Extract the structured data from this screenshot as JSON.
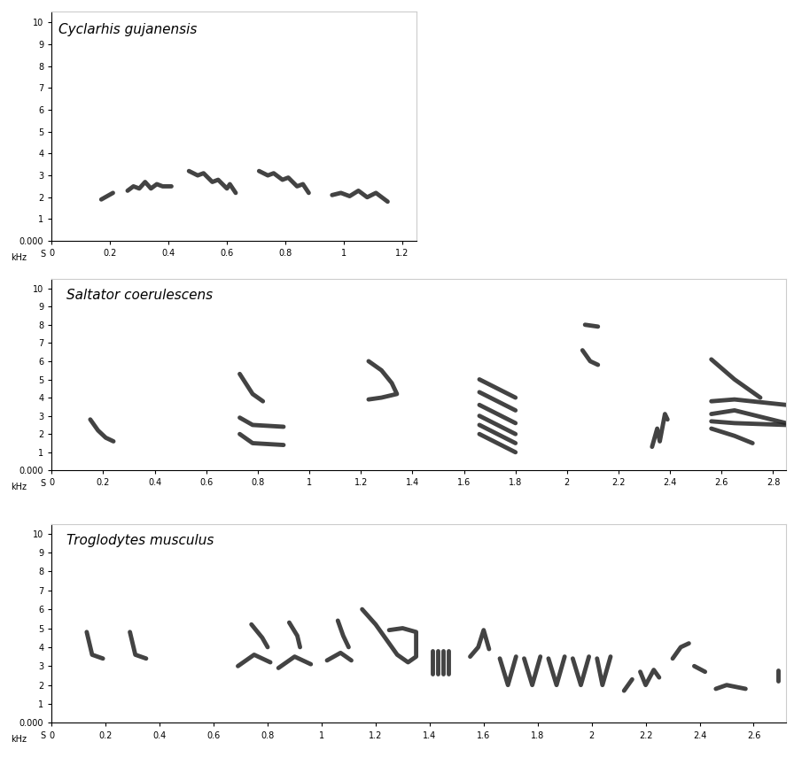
{
  "chart_data": [
    {
      "type": "spectrogram",
      "title": "Cyclarhis gujanensis",
      "xlabel": "S",
      "ylabel": "kHz",
      "color": "#222222",
      "xlim": [
        0,
        1.25
      ],
      "ylim": [
        0,
        10.5
      ],
      "xticks": [
        0,
        0.2,
        0.4,
        0.6,
        0.8,
        1,
        1.2
      ],
      "yticks": [
        {
          "value": 0,
          "label": "0.000"
        },
        1,
        2,
        3,
        4,
        5,
        6,
        7,
        8,
        9,
        10
      ],
      "syllables": [
        [
          [
            0.17,
            1.9
          ],
          [
            0.19,
            2.05
          ],
          [
            0.21,
            2.2
          ]
        ],
        [
          [
            0.26,
            2.3
          ],
          [
            0.28,
            2.5
          ],
          [
            0.3,
            2.4
          ],
          [
            0.32,
            2.7
          ],
          [
            0.34,
            2.4
          ],
          [
            0.36,
            2.6
          ],
          [
            0.38,
            2.5
          ],
          [
            0.41,
            2.5
          ]
        ],
        [
          [
            0.47,
            3.2
          ],
          [
            0.5,
            3.0
          ],
          [
            0.52,
            3.1
          ],
          [
            0.55,
            2.7
          ],
          [
            0.57,
            2.8
          ],
          [
            0.6,
            2.4
          ],
          [
            0.61,
            2.6
          ],
          [
            0.63,
            2.2
          ]
        ],
        [
          [
            0.71,
            3.2
          ],
          [
            0.74,
            3.0
          ],
          [
            0.76,
            3.1
          ],
          [
            0.79,
            2.8
          ],
          [
            0.81,
            2.9
          ],
          [
            0.84,
            2.5
          ],
          [
            0.86,
            2.6
          ],
          [
            0.88,
            2.2
          ]
        ],
        [
          [
            0.96,
            2.1
          ],
          [
            0.99,
            2.2
          ],
          [
            1.02,
            2.05
          ],
          [
            1.05,
            2.3
          ],
          [
            1.08,
            2.0
          ],
          [
            1.11,
            2.2
          ],
          [
            1.15,
            1.8
          ]
        ]
      ]
    },
    {
      "type": "spectrogram",
      "title": "Saltator coerulescens",
      "xlabel": "S",
      "ylabel": "kHz",
      "color": "#222222",
      "xlim": [
        0,
        2.85
      ],
      "ylim": [
        0,
        10.5
      ],
      "xticks": [
        0,
        0.2,
        0.4,
        0.6,
        0.8,
        1,
        1.2,
        1.4,
        1.6,
        1.8,
        2,
        2.2,
        2.4,
        2.6,
        2.8
      ],
      "yticks": [
        {
          "value": 0,
          "label": "0.000"
        },
        1,
        2,
        3,
        4,
        5,
        6,
        7,
        8,
        9,
        10
      ],
      "syllables": [
        [
          [
            0.15,
            2.8
          ],
          [
            0.18,
            2.2
          ],
          [
            0.21,
            1.8
          ],
          [
            0.24,
            1.6
          ]
        ],
        [
          [
            0.73,
            2.9
          ],
          [
            0.78,
            2.5
          ],
          [
            0.9,
            2.4
          ]
        ],
        [
          [
            0.73,
            2.0
          ],
          [
            0.78,
            1.5
          ],
          [
            0.9,
            1.4
          ]
        ],
        [
          [
            0.73,
            5.3
          ],
          [
            0.78,
            4.2
          ],
          [
            0.82,
            3.8
          ]
        ],
        [
          [
            1.23,
            6.0
          ],
          [
            1.28,
            5.5
          ],
          [
            1.32,
            4.8
          ],
          [
            1.34,
            4.2
          ],
          [
            1.28,
            4.0
          ],
          [
            1.23,
            3.9
          ]
        ],
        [
          [
            1.66,
            5.0
          ],
          [
            1.8,
            4.0
          ]
        ],
        [
          [
            1.66,
            4.3
          ],
          [
            1.8,
            3.3
          ]
        ],
        [
          [
            1.66,
            3.6
          ],
          [
            1.8,
            2.6
          ]
        ],
        [
          [
            1.66,
            3.0
          ],
          [
            1.8,
            2.0
          ]
        ],
        [
          [
            1.66,
            2.5
          ],
          [
            1.8,
            1.5
          ]
        ],
        [
          [
            1.66,
            2.0
          ],
          [
            1.8,
            1.0
          ]
        ],
        [
          [
            2.07,
            8.0
          ],
          [
            2.12,
            7.9
          ]
        ],
        [
          [
            2.06,
            6.6
          ],
          [
            2.09,
            6.0
          ],
          [
            2.12,
            5.8
          ]
        ],
        [
          [
            2.33,
            1.3
          ],
          [
            2.35,
            2.3
          ],
          [
            2.36,
            1.6
          ],
          [
            2.38,
            3.1
          ],
          [
            2.39,
            2.8
          ]
        ],
        [
          [
            2.56,
            6.1
          ],
          [
            2.65,
            5.0
          ],
          [
            2.75,
            4.0
          ]
        ],
        [
          [
            2.56,
            3.8
          ],
          [
            2.65,
            3.9
          ],
          [
            2.85,
            3.6
          ]
        ],
        [
          [
            2.56,
            3.1
          ],
          [
            2.65,
            3.3
          ],
          [
            2.85,
            2.6
          ]
        ],
        [
          [
            2.56,
            2.7
          ],
          [
            2.65,
            2.6
          ],
          [
            2.85,
            2.5
          ]
        ],
        [
          [
            2.56,
            2.3
          ],
          [
            2.65,
            1.9
          ],
          [
            2.72,
            1.5
          ]
        ]
      ]
    },
    {
      "type": "spectrogram",
      "title": "Troglodytes musculus",
      "xlabel": "S",
      "ylabel": "kHz",
      "color": "#222222",
      "xlim": [
        0,
        2.72
      ],
      "ylim": [
        0,
        10.5
      ],
      "xticks": [
        0,
        0.2,
        0.4,
        0.6,
        0.8,
        1,
        1.2,
        1.4,
        1.6,
        1.8,
        2,
        2.2,
        2.4,
        2.6
      ],
      "yticks": [
        {
          "value": 0,
          "label": "0.000"
        },
        1,
        2,
        3,
        4,
        5,
        6,
        7,
        8,
        9,
        10
      ],
      "syllables": [
        [
          [
            0.13,
            4.8
          ],
          [
            0.15,
            3.6
          ],
          [
            0.19,
            3.4
          ]
        ],
        [
          [
            0.29,
            4.8
          ],
          [
            0.31,
            3.6
          ],
          [
            0.35,
            3.4
          ]
        ],
        [
          [
            0.74,
            5.2
          ],
          [
            0.78,
            4.5
          ],
          [
            0.8,
            4.0
          ]
        ],
        [
          [
            0.69,
            3.0
          ],
          [
            0.75,
            3.6
          ],
          [
            0.81,
            3.2
          ]
        ],
        [
          [
            0.88,
            5.3
          ],
          [
            0.91,
            4.6
          ],
          [
            0.92,
            4.0
          ]
        ],
        [
          [
            0.84,
            2.9
          ],
          [
            0.9,
            3.5
          ],
          [
            0.96,
            3.1
          ]
        ],
        [
          [
            1.06,
            5.4
          ],
          [
            1.08,
            4.6
          ],
          [
            1.1,
            4.0
          ]
        ],
        [
          [
            1.02,
            3.3
          ],
          [
            1.07,
            3.7
          ],
          [
            1.11,
            3.3
          ]
        ],
        [
          [
            1.15,
            6.0
          ],
          [
            1.2,
            5.2
          ],
          [
            1.24,
            4.4
          ],
          [
            1.28,
            3.6
          ],
          [
            1.32,
            3.2
          ],
          [
            1.35,
            3.5
          ],
          [
            1.35,
            4.8
          ],
          [
            1.3,
            5.0
          ],
          [
            1.25,
            4.9
          ]
        ],
        [
          [
            1.41,
            3.8
          ],
          [
            1.41,
            2.6
          ]
        ],
        [
          [
            1.43,
            3.8
          ],
          [
            1.43,
            2.6
          ]
        ],
        [
          [
            1.45,
            3.8
          ],
          [
            1.45,
            2.6
          ]
        ],
        [
          [
            1.47,
            3.8
          ],
          [
            1.47,
            2.6
          ]
        ],
        [
          [
            1.55,
            3.5
          ],
          [
            1.58,
            4.0
          ],
          [
            1.6,
            4.9
          ],
          [
            1.62,
            3.9
          ]
        ],
        [
          [
            1.66,
            3.4
          ],
          [
            1.69,
            2.0
          ],
          [
            1.72,
            3.5
          ]
        ],
        [
          [
            1.75,
            3.4
          ],
          [
            1.78,
            2.0
          ],
          [
            1.81,
            3.5
          ]
        ],
        [
          [
            1.84,
            3.4
          ],
          [
            1.87,
            2.0
          ],
          [
            1.9,
            3.5
          ]
        ],
        [
          [
            1.93,
            3.4
          ],
          [
            1.96,
            2.0
          ],
          [
            1.99,
            3.5
          ]
        ],
        [
          [
            2.02,
            3.4
          ],
          [
            2.04,
            2.0
          ],
          [
            2.07,
            3.5
          ]
        ],
        [
          [
            2.12,
            1.7
          ],
          [
            2.15,
            2.3
          ]
        ],
        [
          [
            2.18,
            2.7
          ],
          [
            2.2,
            2.0
          ],
          [
            2.23,
            2.8
          ],
          [
            2.25,
            2.4
          ]
        ],
        [
          [
            2.3,
            3.4
          ],
          [
            2.33,
            4.0
          ],
          [
            2.36,
            4.2
          ]
        ],
        [
          [
            2.38,
            3.0
          ],
          [
            2.42,
            2.7
          ]
        ],
        [
          [
            2.46,
            1.8
          ],
          [
            2.5,
            2.0
          ],
          [
            2.57,
            1.8
          ]
        ],
        [
          [
            2.69,
            2.2
          ],
          [
            2.69,
            2.8
          ]
        ]
      ]
    }
  ]
}
